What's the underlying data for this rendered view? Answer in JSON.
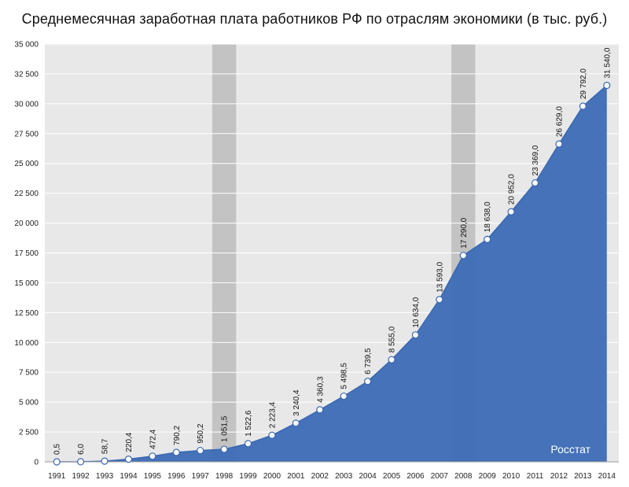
{
  "chart_data": {
    "type": "area",
    "title": "Среднемесячная заработная плата работников РФ по отраслям экономики (в тыс. руб.)",
    "xlabel": "",
    "ylabel": "",
    "source": "Росстат",
    "x": [
      "1991",
      "1992",
      "1993",
      "1994",
      "1995",
      "1996",
      "1997",
      "1998",
      "1999",
      "2000",
      "2001",
      "2002",
      "2003",
      "2004",
      "2005",
      "2006",
      "2007",
      "2008",
      "2009",
      "2010",
      "2011",
      "2012",
      "2013",
      "2014"
    ],
    "series": [
      {
        "values": [
          0.5,
          6.0,
          58.7,
          220.4,
          472.4,
          790.2,
          950.2,
          1051.5,
          1522.6,
          2223.4,
          3240.4,
          4360.3,
          5498.5,
          6739.5,
          8555.0,
          10634.0,
          13593.0,
          17290.0,
          18638.0,
          20952.0,
          23369.0,
          26629.0,
          29792.0,
          31540.0
        ],
        "labels": [
          "0,5",
          "6,0",
          "58,7",
          "220,4",
          "472,4",
          "790,2",
          "950,2",
          "1 051,5",
          "1 522,6",
          "2 223,4",
          "3 240,4",
          "4 360,3",
          "5 498,5",
          "6 739,5",
          "8 555,0",
          "10 634,0",
          "13 593,0",
          "17 290,0",
          "18 638,0",
          "20 952,0",
          "23 369,0",
          "26 629,0",
          "29 792,0",
          "31 540,0"
        ]
      }
    ],
    "ylim": [
      0,
      35000
    ],
    "yticks": [
      0,
      2500,
      5000,
      7500,
      10000,
      12500,
      15000,
      17500,
      20000,
      22500,
      25000,
      27500,
      30000,
      32500,
      35000
    ],
    "ytick_labels": [
      "0",
      "2 500",
      "5 000",
      "7 500",
      "10 000",
      "12 500",
      "15 000",
      "17 500",
      "20 000",
      "22 500",
      "25 000",
      "27 500",
      "30 000",
      "32 500",
      "35 000"
    ],
    "highlight_years": [
      "1998",
      "2008"
    ],
    "grid": true,
    "colors": {
      "area": "#3f6db6",
      "line": "#3a68b2",
      "background": "#e8e8e8",
      "highlight": "#c3c3c3",
      "gridline": "#ffffff",
      "marker_fill": "#ffffff"
    }
  }
}
